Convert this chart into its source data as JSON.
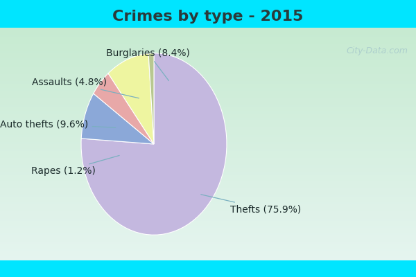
{
  "title": "Crimes by type - 2015",
  "slices": [
    {
      "label": "Thefts (75.9%)",
      "value": 75.9,
      "color": "#c4b8df"
    },
    {
      "label": "Burglaries (8.4%)",
      "value": 8.4,
      "color": "#8ba8d8"
    },
    {
      "label": "Assaults (4.8%)",
      "value": 4.8,
      "color": "#e8a8a8"
    },
    {
      "label": "Auto thefts (9.6%)",
      "value": 9.6,
      "color": "#eef5a0"
    },
    {
      "label": "Rapes (1.2%)",
      "value": 1.2,
      "color": "#b8c890"
    }
  ],
  "bg_color_top": "#00e5ff",
  "bg_color_body_top": "#d8eee0",
  "bg_color_body_bottom": "#e8f4f0",
  "title_fontsize": 16,
  "label_fontsize": 10,
  "watermark": "City-Data.com",
  "start_angle": 90,
  "title_color": "#2a3a3a"
}
